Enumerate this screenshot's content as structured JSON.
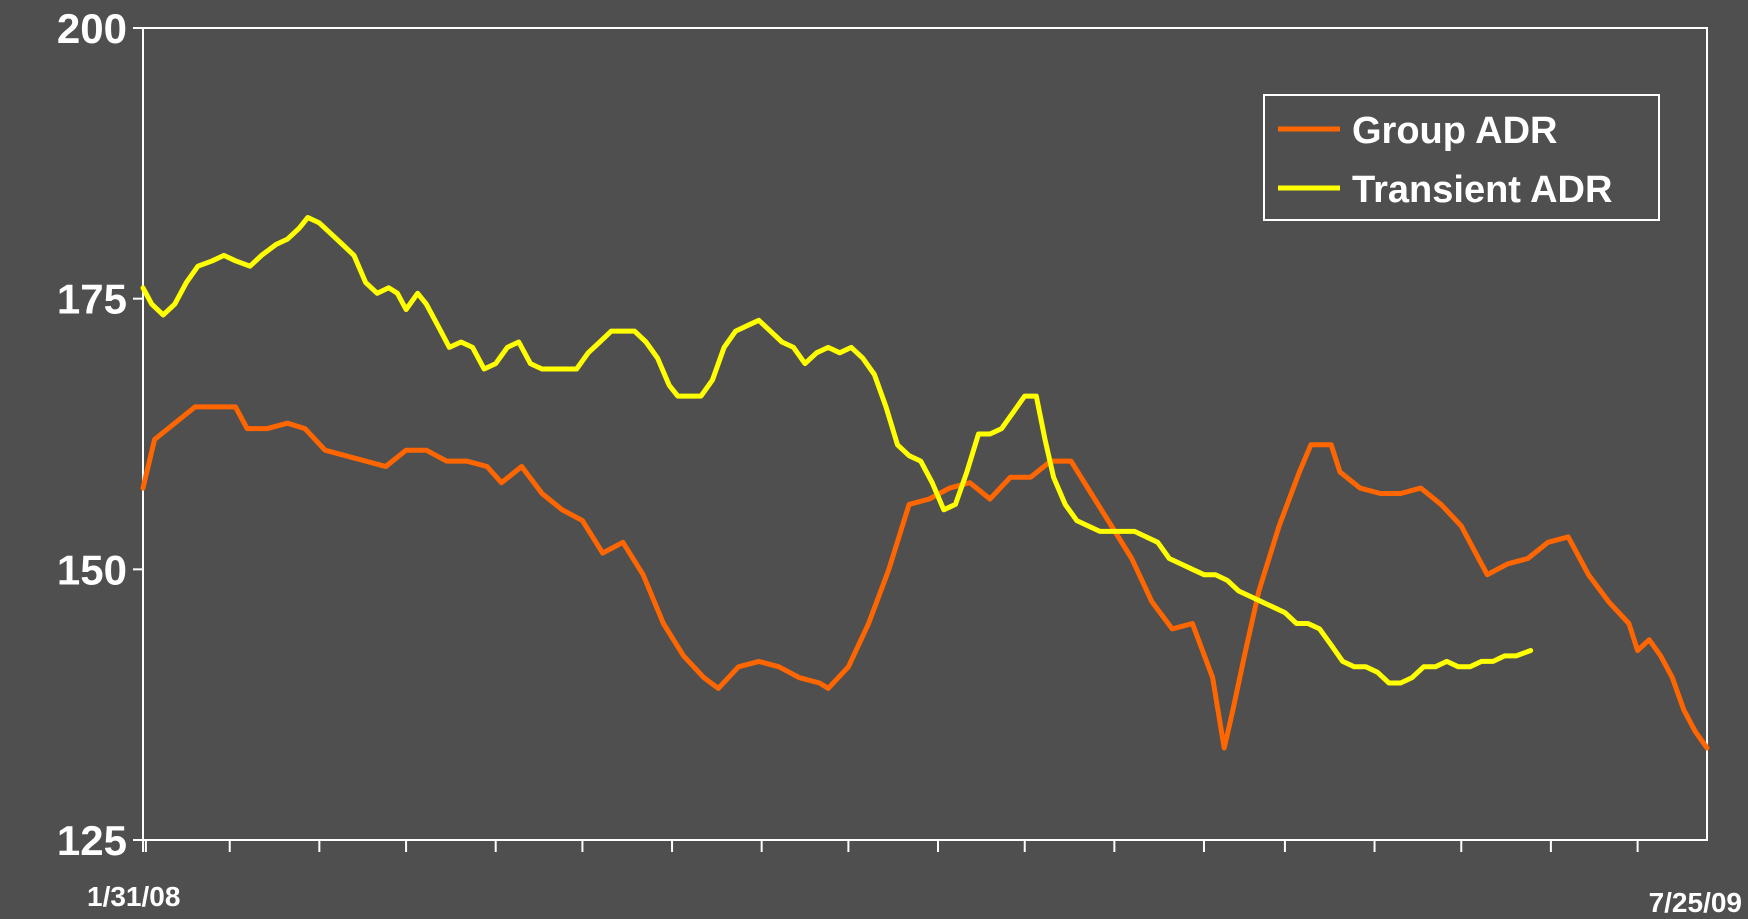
{
  "chart_data": {
    "type": "line",
    "title": "",
    "xlabel": "",
    "ylabel": "",
    "x_start_label": "1/31/08",
    "x_end_label": "7/25/09",
    "x_start_date": "2008-01-31",
    "x_end_date": "2009-07-25",
    "ylim": [
      125,
      200
    ],
    "yticks": [
      {
        "value": 200,
        "label": "200"
      },
      {
        "value": 175,
        "label": "175"
      },
      {
        "value": 150,
        "label": "150"
      },
      {
        "value": 125,
        "label": "125"
      }
    ],
    "grid": false,
    "legend_position": "top-right",
    "series": [
      {
        "name": "Group ADR",
        "color": "#ff6600",
        "points": [
          [
            "2008-01-31",
            157.5
          ],
          [
            "2008-02-04",
            162
          ],
          [
            "2008-02-11",
            163.5
          ],
          [
            "2008-02-18",
            165
          ],
          [
            "2008-02-25",
            165
          ],
          [
            "2008-03-03",
            165
          ],
          [
            "2008-03-07",
            163
          ],
          [
            "2008-03-14",
            163
          ],
          [
            "2008-03-21",
            163.5
          ],
          [
            "2008-03-27",
            163
          ],
          [
            "2008-04-03",
            161
          ],
          [
            "2008-04-10",
            160.5
          ],
          [
            "2008-04-17",
            160
          ],
          [
            "2008-04-24",
            159.5
          ],
          [
            "2008-05-01",
            161
          ],
          [
            "2008-05-08",
            161
          ],
          [
            "2008-05-15",
            160
          ],
          [
            "2008-05-22",
            160
          ],
          [
            "2008-05-29",
            159.5
          ],
          [
            "2008-06-03",
            158
          ],
          [
            "2008-06-10",
            159.5
          ],
          [
            "2008-06-17",
            157
          ],
          [
            "2008-06-24",
            155.5
          ],
          [
            "2008-07-01",
            154.5
          ],
          [
            "2008-07-08",
            151.5
          ],
          [
            "2008-07-15",
            152.5
          ],
          [
            "2008-07-22",
            149.5
          ],
          [
            "2008-07-29",
            145
          ],
          [
            "2008-08-05",
            142
          ],
          [
            "2008-08-12",
            140
          ],
          [
            "2008-08-17",
            139
          ],
          [
            "2008-08-24",
            141
          ],
          [
            "2008-08-31",
            141.5
          ],
          [
            "2008-09-07",
            141
          ],
          [
            "2008-09-14",
            140
          ],
          [
            "2008-09-21",
            139.5
          ],
          [
            "2008-09-24",
            139
          ],
          [
            "2008-10-01",
            141
          ],
          [
            "2008-10-08",
            145
          ],
          [
            "2008-10-15",
            150
          ],
          [
            "2008-10-22",
            156
          ],
          [
            "2008-10-29",
            156.5
          ],
          [
            "2008-11-05",
            157.5
          ],
          [
            "2008-11-12",
            158
          ],
          [
            "2008-11-19",
            156.5
          ],
          [
            "2008-11-26",
            158.5
          ],
          [
            "2008-12-03",
            158.5
          ],
          [
            "2008-12-10",
            160
          ],
          [
            "2008-12-17",
            160
          ],
          [
            "2008-12-24",
            157
          ],
          [
            "2008-12-31",
            154
          ],
          [
            "2009-01-07",
            151
          ],
          [
            "2009-01-14",
            147
          ],
          [
            "2009-01-21",
            144.5
          ],
          [
            "2009-01-28",
            145
          ],
          [
            "2009-02-04",
            140
          ],
          [
            "2009-02-08",
            133.5
          ],
          [
            "2009-02-11",
            137
          ],
          [
            "2009-02-15",
            142
          ],
          [
            "2009-02-20",
            148
          ],
          [
            "2009-02-27",
            154
          ],
          [
            "2009-03-06",
            159
          ],
          [
            "2009-03-10",
            161.5
          ],
          [
            "2009-03-17",
            161.5
          ],
          [
            "2009-03-20",
            159
          ],
          [
            "2009-03-27",
            157.5
          ],
          [
            "2009-04-03",
            157
          ],
          [
            "2009-04-10",
            157
          ],
          [
            "2009-04-17",
            157.5
          ],
          [
            "2009-04-24",
            156
          ],
          [
            "2009-05-01",
            154
          ],
          [
            "2009-05-05",
            152
          ],
          [
            "2009-05-10",
            149.5
          ],
          [
            "2009-05-17",
            150.5
          ],
          [
            "2009-05-24",
            151
          ],
          [
            "2009-05-31",
            152.5
          ],
          [
            "2009-06-07",
            153
          ],
          [
            "2009-06-14",
            149.5
          ],
          [
            "2009-06-21",
            147
          ],
          [
            "2009-06-28",
            145
          ],
          [
            "2009-07-01",
            142.5
          ],
          [
            "2009-07-05",
            143.5
          ],
          [
            "2009-07-09",
            142
          ],
          [
            "2009-07-13",
            140
          ],
          [
            "2009-07-17",
            137
          ],
          [
            "2009-07-21",
            135
          ],
          [
            "2009-07-25",
            133.5
          ]
        ]
      },
      {
        "name": "Transient ADR",
        "color": "#ffff00",
        "points": [
          [
            "2008-01-31",
            176
          ],
          [
            "2008-02-03",
            174.5
          ],
          [
            "2008-02-07",
            173.5
          ],
          [
            "2008-02-11",
            174.5
          ],
          [
            "2008-02-15",
            176.5
          ],
          [
            "2008-02-19",
            178
          ],
          [
            "2008-02-24",
            178.5
          ],
          [
            "2008-02-28",
            179
          ],
          [
            "2008-03-03",
            178.5
          ],
          [
            "2008-03-08",
            178
          ],
          [
            "2008-03-12",
            179
          ],
          [
            "2008-03-17",
            180
          ],
          [
            "2008-03-21",
            180.5
          ],
          [
            "2008-03-25",
            181.5
          ],
          [
            "2008-03-28",
            182.5
          ],
          [
            "2008-04-01",
            182
          ],
          [
            "2008-04-05",
            181
          ],
          [
            "2008-04-09",
            180
          ],
          [
            "2008-04-13",
            179
          ],
          [
            "2008-04-17",
            176.5
          ],
          [
            "2008-04-21",
            175.5
          ],
          [
            "2008-04-25",
            176
          ],
          [
            "2008-04-28",
            175.5
          ],
          [
            "2008-05-01",
            174
          ],
          [
            "2008-05-05",
            175.5
          ],
          [
            "2008-05-08",
            174.5
          ],
          [
            "2008-05-12",
            172.5
          ],
          [
            "2008-05-16",
            170.5
          ],
          [
            "2008-05-20",
            171
          ],
          [
            "2008-05-24",
            170.5
          ],
          [
            "2008-05-28",
            168.5
          ],
          [
            "2008-06-01",
            169
          ],
          [
            "2008-06-05",
            170.5
          ],
          [
            "2008-06-09",
            171
          ],
          [
            "2008-06-13",
            169
          ],
          [
            "2008-06-17",
            168.5
          ],
          [
            "2008-06-21",
            168.5
          ],
          [
            "2008-06-25",
            168.5
          ],
          [
            "2008-06-29",
            168.5
          ],
          [
            "2008-07-03",
            170
          ],
          [
            "2008-07-07",
            171
          ],
          [
            "2008-07-11",
            172
          ],
          [
            "2008-07-15",
            172
          ],
          [
            "2008-07-19",
            172
          ],
          [
            "2008-07-23",
            171
          ],
          [
            "2008-07-27",
            169.5
          ],
          [
            "2008-07-31",
            167
          ],
          [
            "2008-08-03",
            166
          ],
          [
            "2008-08-07",
            166
          ],
          [
            "2008-08-11",
            166
          ],
          [
            "2008-08-15",
            167.5
          ],
          [
            "2008-08-19",
            170.5
          ],
          [
            "2008-08-23",
            172
          ],
          [
            "2008-08-27",
            172.5
          ],
          [
            "2008-08-31",
            173
          ],
          [
            "2008-09-04",
            172
          ],
          [
            "2008-09-08",
            171
          ],
          [
            "2008-09-12",
            170.5
          ],
          [
            "2008-09-16",
            169
          ],
          [
            "2008-09-20",
            170
          ],
          [
            "2008-09-24",
            170.5
          ],
          [
            "2008-09-28",
            170
          ],
          [
            "2008-10-02",
            170.5
          ],
          [
            "2008-10-06",
            169.5
          ],
          [
            "2008-10-10",
            168
          ],
          [
            "2008-10-14",
            165
          ],
          [
            "2008-10-18",
            161.5
          ],
          [
            "2008-10-22",
            160.5
          ],
          [
            "2008-10-26",
            160
          ],
          [
            "2008-10-30",
            158
          ],
          [
            "2008-11-03",
            155.5
          ],
          [
            "2008-11-07",
            156
          ],
          [
            "2008-11-11",
            159
          ],
          [
            "2008-11-15",
            162.5
          ],
          [
            "2008-11-19",
            162.5
          ],
          [
            "2008-11-23",
            163
          ],
          [
            "2008-11-27",
            164.5
          ],
          [
            "2008-12-01",
            166
          ],
          [
            "2008-12-05",
            166
          ],
          [
            "2008-12-08",
            162
          ],
          [
            "2008-12-11",
            158.5
          ],
          [
            "2008-12-15",
            156
          ],
          [
            "2008-12-19",
            154.5
          ],
          [
            "2008-12-23",
            154
          ],
          [
            "2008-12-27",
            153.5
          ],
          [
            "2008-12-31",
            153.5
          ],
          [
            "2009-01-04",
            153.5
          ],
          [
            "2009-01-08",
            153.5
          ],
          [
            "2009-01-12",
            153
          ],
          [
            "2009-01-16",
            152.5
          ],
          [
            "2009-01-20",
            151
          ],
          [
            "2009-01-24",
            150.5
          ],
          [
            "2009-01-28",
            150
          ],
          [
            "2009-02-01",
            149.5
          ],
          [
            "2009-02-05",
            149.5
          ],
          [
            "2009-02-09",
            149
          ],
          [
            "2009-02-13",
            148
          ],
          [
            "2009-02-17",
            147.5
          ],
          [
            "2009-02-21",
            147
          ],
          [
            "2009-02-25",
            146.5
          ],
          [
            "2009-03-01",
            146
          ],
          [
            "2009-03-05",
            145
          ],
          [
            "2009-03-09",
            145
          ],
          [
            "2009-03-13",
            144.5
          ],
          [
            "2009-03-17",
            143
          ],
          [
            "2009-03-21",
            141.5
          ],
          [
            "2009-03-25",
            141
          ],
          [
            "2009-03-29",
            141
          ],
          [
            "2009-04-02",
            140.5
          ],
          [
            "2009-04-06",
            139.5
          ],
          [
            "2009-04-10",
            139.5
          ],
          [
            "2009-04-14",
            140
          ],
          [
            "2009-04-18",
            141
          ],
          [
            "2009-04-22",
            141
          ],
          [
            "2009-04-26",
            141.5
          ],
          [
            "2009-04-30",
            141
          ],
          [
            "2009-05-04",
            141
          ],
          [
            "2009-05-08",
            141.5
          ],
          [
            "2009-05-12",
            141.5
          ],
          [
            "2009-05-16",
            142
          ],
          [
            "2009-05-20",
            142
          ],
          [
            "2009-05-25",
            142.5
          ]
        ]
      }
    ]
  }
}
